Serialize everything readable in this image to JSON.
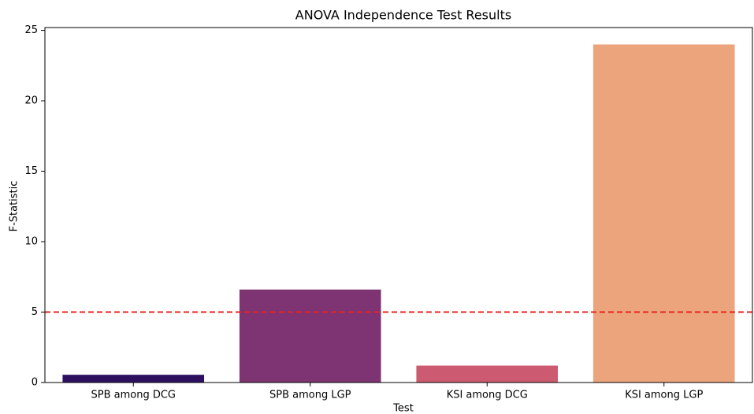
{
  "chart_data": {
    "type": "bar",
    "title": "ANOVA Independence Test Results",
    "x_label": "Test",
    "y_label": "F-Statistic",
    "categories": [
      "SPB among DCG",
      "SPB among LGP",
      "KSI among DCG",
      "KSI among LGP"
    ],
    "values": [
      0.55,
      6.6,
      1.2,
      24.0
    ],
    "colors": [
      "#2d1160",
      "#7e3373",
      "#cc5a70",
      "#eca47c"
    ],
    "ylim": [
      0,
      25.2
    ],
    "yticks": [
      0,
      5,
      10,
      15,
      20,
      25
    ],
    "grid": false,
    "threshold": 5,
    "threshold_color": "#e8231f"
  }
}
